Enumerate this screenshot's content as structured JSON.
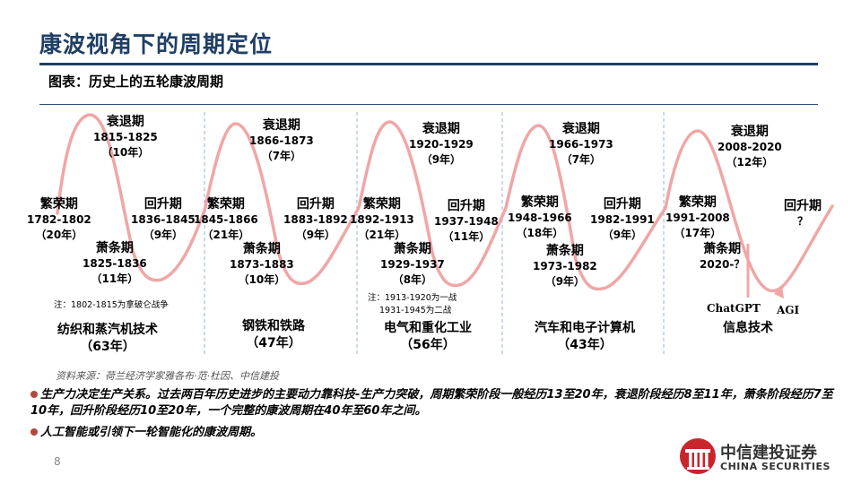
{
  "title": "康波视角下的周期定位",
  "subtitle": "图表：历史上的五轮康波周期",
  "cycles": [
    {
      "prosperity": {
        "phase": "繁荣期",
        "years": "1782-1802",
        "duration": "（20年）"
      },
      "recession": {
        "phase": "衰退期",
        "years": "1815-1825",
        "duration": "（10年）"
      },
      "depression": {
        "phase": "萧条期",
        "years": "1825-1836",
        "duration": "（11年）"
      },
      "recovery": {
        "phase": "回升期",
        "years": "1836-1845",
        "duration": "（9年）"
      },
      "era": "纺织和蒸汽机技术",
      "era_duration": "（63年）"
    },
    {
      "prosperity": {
        "phase": "繁荣期",
        "years": "1845-1866",
        "duration": "（21年）"
      },
      "recession": {
        "phase": "衰退期",
        "years": "1866-1873",
        "duration": "（7年）"
      },
      "depression": {
        "phase": "萧条期",
        "years": "1873-1883",
        "duration": "（10年）"
      },
      "recovery": {
        "phase": "回升期",
        "years": "1883-1892",
        "duration": "（9年）"
      },
      "era": "钢铁和铁路",
      "era_duration": "（47年）"
    },
    {
      "prosperity": {
        "phase": "繁荣期",
        "years": "1892-1913",
        "duration": "（21年）"
      },
      "recession": {
        "phase": "衰退期",
        "years": "1920-1929",
        "duration": "（9年）"
      },
      "depression": {
        "phase": "萧条期",
        "years": "1929-1937",
        "duration": "（8年）"
      },
      "recovery": {
        "phase": "回升期",
        "years": "1937-1948",
        "duration": "（11年）"
      },
      "era": "电气和重化工业",
      "era_duration": "（56年）"
    },
    {
      "prosperity": {
        "phase": "繁荣期",
        "years": "1948-1966",
        "duration": "（18年）"
      },
      "recession": {
        "phase": "衰退期",
        "years": "1966-1973",
        "duration": "（7年）"
      },
      "depression": {
        "phase": "萧条期",
        "years": "1973-1982",
        "duration": "（9年）"
      },
      "recovery": {
        "phase": "回升期",
        "years": "1982-1991",
        "duration": "（9年）"
      },
      "era": "汽车和电子计算机",
      "era_duration": "（43年）"
    },
    {
      "prosperity": {
        "phase": "繁荣期",
        "years": "1991-2008",
        "duration": "（17年）"
      },
      "recession": {
        "phase": "衰退期",
        "years": "2008-2020",
        "duration": "（12年）"
      },
      "depression": {
        "phase": "萧条期",
        "years": "2020-？",
        "duration": ""
      },
      "recovery": {
        "phase": "回升期",
        "years": "？",
        "duration": ""
      },
      "era": "信息技术",
      "era_duration": ""
    }
  ],
  "notes": {
    "cycle1": "注：1802-1815为拿破仑战争",
    "cycle3_line1": "注：1913-1920为一战",
    "cycle3_line2": "1931-1945为二战"
  },
  "markers": {
    "chatgpt": "ChatGPT",
    "agi": "AGI"
  },
  "source": "资料来源：荷兰经济学家雅各布·范·杜因、中信建投",
  "bullets": [
    "生产力决定生产关系。过去两百年历史进步的主要动力靠科技-生产力突破，周期繁荣阶段一般经历13至20年，衰退阶段经历8至11年，萧条阶段经历7至10年，回升阶段经历10至20年，一个完整的康波周期在40年至60年之间。",
    "人工智能或引领下一轮智能化的康波周期。"
  ],
  "page_number": "8",
  "logo": {
    "name_cn": "中信建投证券",
    "name_en": "CHINA SECURITIES"
  },
  "colors": {
    "title": "#1f3f66",
    "curve": "#f0a6a6",
    "bullet": "#b5463e",
    "divider": "#9ab3d6"
  }
}
